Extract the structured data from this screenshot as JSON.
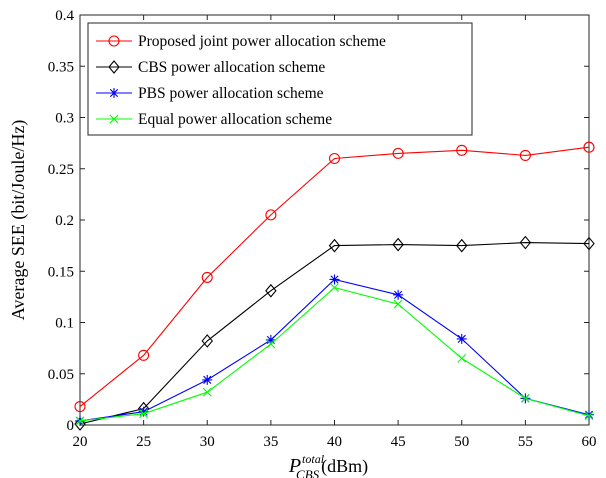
{
  "chart_data": {
    "type": "line",
    "title": "",
    "xlabel": {
      "base": "P",
      "sup": "total",
      "sub": "CBS",
      "unit": "(dBm)"
    },
    "ylabel": "Average SEE (bit/Joule/Hz)",
    "x": [
      20,
      25,
      30,
      35,
      40,
      45,
      50,
      55,
      60
    ],
    "xlim": [
      20,
      60
    ],
    "ylim": [
      0,
      0.4
    ],
    "xticks": [
      "20",
      "25",
      "30",
      "35",
      "40",
      "45",
      "50",
      "55",
      "60"
    ],
    "yticks": [
      "0",
      "0.05",
      "0.1",
      "0.15",
      "0.2",
      "0.25",
      "0.3",
      "0.35",
      "0.4"
    ],
    "grid": false,
    "legend_position": "top-left",
    "series": [
      {
        "name": "Proposed joint power allocation scheme",
        "color": "#ff0000",
        "marker": "circle",
        "values": [
          0.018,
          0.068,
          0.144,
          0.205,
          0.26,
          0.265,
          0.268,
          0.263,
          0.271
        ]
      },
      {
        "name": "CBS power allocation scheme",
        "color": "#000000",
        "marker": "diamond",
        "values": [
          0.001,
          0.016,
          0.082,
          0.131,
          0.175,
          0.176,
          0.175,
          0.178,
          0.177
        ]
      },
      {
        "name": "PBS power allocation scheme",
        "color": "#0000ff",
        "marker": "asterisk",
        "values": [
          0.004,
          0.013,
          0.044,
          0.083,
          0.142,
          0.127,
          0.084,
          0.026,
          0.01
        ]
      },
      {
        "name": "Equal power allocation scheme",
        "color": "#00ff00",
        "marker": "x",
        "values": [
          0.004,
          0.011,
          0.032,
          0.079,
          0.134,
          0.118,
          0.065,
          0.026,
          0.009
        ]
      }
    ]
  }
}
